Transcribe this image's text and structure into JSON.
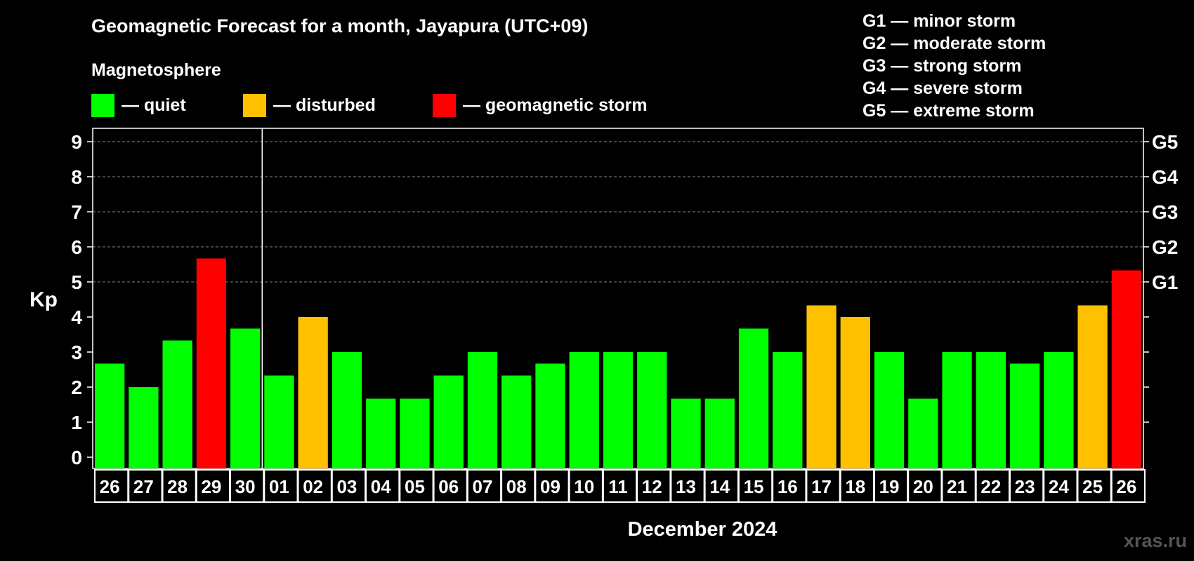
{
  "chart_data": {
    "type": "bar",
    "title": "Geomagnetic Forecast for a month, Jayapura (UTC+09)",
    "subtitle": "Magnetosphere",
    "ylabel": "Kp",
    "xlabel": "December 2024",
    "ylim": [
      0,
      9
    ],
    "yticks": [
      "0",
      "1",
      "2",
      "3",
      "4",
      "5",
      "6",
      "7",
      "8",
      "9"
    ],
    "right_ticks": [
      {
        "kp": 5,
        "label": "G1"
      },
      {
        "kp": 6,
        "label": "G2"
      },
      {
        "kp": 7,
        "label": "G3"
      },
      {
        "kp": 8,
        "label": "G4"
      },
      {
        "kp": 9,
        "label": "G5"
      }
    ],
    "categories": [
      "26",
      "27",
      "28",
      "29",
      "30",
      "01",
      "02",
      "03",
      "04",
      "05",
      "06",
      "07",
      "08",
      "09",
      "10",
      "11",
      "12",
      "13",
      "14",
      "15",
      "16",
      "17",
      "18",
      "19",
      "20",
      "21",
      "22",
      "23",
      "24",
      "25",
      "26"
    ],
    "values": [
      2.67,
      2.0,
      3.33,
      5.67,
      3.67,
      2.33,
      4.0,
      3.0,
      1.67,
      1.67,
      2.33,
      3.0,
      2.33,
      2.67,
      3.0,
      3.0,
      3.0,
      1.67,
      1.67,
      3.67,
      3.0,
      4.33,
      4.0,
      3.0,
      1.67,
      3.0,
      3.0,
      2.67,
      3.0,
      4.33,
      5.33
    ],
    "status": [
      "quiet",
      "quiet",
      "quiet",
      "storm",
      "quiet",
      "quiet",
      "disturbed",
      "quiet",
      "quiet",
      "quiet",
      "quiet",
      "quiet",
      "quiet",
      "quiet",
      "quiet",
      "quiet",
      "quiet",
      "quiet",
      "quiet",
      "quiet",
      "quiet",
      "disturbed",
      "disturbed",
      "quiet",
      "quiet",
      "quiet",
      "quiet",
      "quiet",
      "quiet",
      "disturbed",
      "storm"
    ],
    "month_divider_after_index": 4,
    "grid": true
  },
  "legend": [
    {
      "key": "quiet",
      "label": "— quiet",
      "color": "#00ff00"
    },
    {
      "key": "disturbed",
      "label": "— disturbed",
      "color": "#ffc000"
    },
    {
      "key": "storm",
      "label": "— geomagnetic storm",
      "color": "#ff0000"
    }
  ],
  "g_scale": [
    "G1 — minor storm",
    "G2 — moderate storm",
    "G3 — strong storm",
    "G4 — severe storm",
    "G5 — extreme storm"
  ],
  "watermark": "xras.ru"
}
